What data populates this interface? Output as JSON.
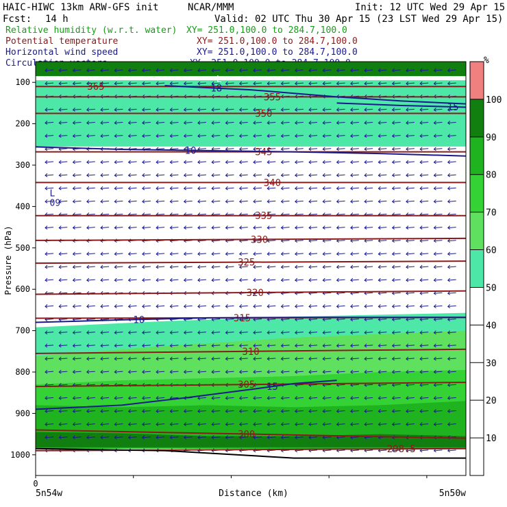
{
  "header": {
    "model": "HAIC-HIWC 13km ARW-GFS init",
    "center": "NCAR/MMM",
    "init": "Init: 12 UTC Wed 29 Apr 15",
    "fcst_label": "Fcst:",
    "fcst_value": "14 h",
    "valid": "Valid: 02 UTC Thu 30 Apr 15 (23 LST Wed 29 Apr 15)"
  },
  "fields": [
    {
      "name": "Relative humidity (w.r.t. water)",
      "xy": "XY= 251.0,100.0 to 284.7,100.0",
      "color": "#1a9a1a"
    },
    {
      "name": "Potential temperature",
      "xy": "XY= 251.0,100.0 to 284.7,100.0",
      "color": "#8b1a1a"
    },
    {
      "name": "Horizontal wind speed",
      "xy": "XY= 251.0,100.0 to 284.7,100.0",
      "color": "#1a1a8b"
    },
    {
      "name": "Circulation vectors",
      "xy": "XY= 251.0,100.0 to 284.7,100.0",
      "color": "#1a1a8b"
    }
  ],
  "chart_data": {
    "type": "heatmap",
    "ylabel": "Pressure (hPa)",
    "xlabel": "Distance (km)",
    "x_tick_label": "0",
    "x_left_label": "5n54w",
    "x_right_label": "5n50w",
    "y_ticks": [
      100,
      200,
      300,
      400,
      500,
      600,
      700,
      800,
      900,
      1000
    ],
    "y_range": [
      50,
      1050
    ],
    "colorbar": {
      "unit": "%",
      "ticks": [
        10,
        20,
        30,
        40,
        50,
        60,
        70,
        80,
        90,
        100
      ],
      "bands": [
        {
          "from": 0,
          "to": 50,
          "color": "#ffffff"
        },
        {
          "from": 50,
          "to": 60,
          "color": "#4de8a8"
        },
        {
          "from": 60,
          "to": 70,
          "color": "#5fe05f"
        },
        {
          "from": 70,
          "to": 80,
          "color": "#34d234"
        },
        {
          "from": 80,
          "to": 90,
          "color": "#1fb41f"
        },
        {
          "from": 90,
          "to": 100,
          "color": "#107f10"
        },
        {
          "from": 100,
          "to": 110,
          "color": "#f08080"
        }
      ]
    },
    "rh_regions": [
      {
        "rh": 55,
        "x": [
          0,
          100
        ],
        "top": [
          95,
          95
        ],
        "bottom": [
          255,
          255
        ]
      },
      {
        "rh": 55,
        "x": [
          0,
          30,
          60,
          100
        ],
        "top": [
          692,
          677,
          666,
          657
        ],
        "bottom": [
          985,
          985,
          985,
          985
        ]
      },
      {
        "rh": 65,
        "x": [
          0,
          30,
          60,
          100
        ],
        "top": [
          762,
          737,
          717,
          700
        ],
        "bottom": [
          985,
          985,
          985,
          985
        ]
      },
      {
        "rh": 75,
        "x": [
          0,
          20,
          40,
          60,
          80,
          100
        ],
        "top": [
          830,
          820,
          815,
          810,
          800,
          795
        ],
        "bottom": [
          985,
          985,
          985,
          985,
          985,
          985
        ]
      },
      {
        "rh": 85,
        "x": [
          0,
          20,
          40,
          60,
          80,
          100
        ],
        "top": [
          880,
          885,
          880,
          885,
          880,
          870
        ],
        "bottom": [
          985,
          985,
          985,
          985,
          985,
          985
        ]
      },
      {
        "rh": 95,
        "x": [
          0,
          20,
          40,
          60,
          80,
          100
        ],
        "top": [
          945,
          948,
          955,
          955,
          950,
          955
        ],
        "bottom": [
          982,
          982,
          982,
          982,
          982,
          982
        ]
      },
      {
        "rh": 95,
        "x": [
          0,
          100
        ],
        "top": [
          50,
          50
        ],
        "bottom": [
          85,
          85
        ]
      }
    ],
    "theta_contours": [
      {
        "label": "365",
        "label_x": 14,
        "p": [
          110,
          110
        ]
      },
      {
        "label": "355",
        "label_x": 55,
        "p": [
          135,
          135
        ]
      },
      {
        "label": "350",
        "label_x": 53,
        "p": [
          175,
          175
        ]
      },
      {
        "label": "345",
        "label_x": 53,
        "p": [
          268,
          268
        ]
      },
      {
        "label": "340",
        "label_x": 55,
        "p": [
          342,
          342
        ]
      },
      {
        "label": "335",
        "label_x": 53,
        "p": [
          422,
          422
        ]
      },
      {
        "label": "330",
        "label_x": 52,
        "p": [
          482,
          477
        ]
      },
      {
        "label": "325",
        "label_x": 49,
        "p": [
          537,
          532
        ]
      },
      {
        "label": "320",
        "label_x": 51,
        "p": [
          612,
          604
        ]
      },
      {
        "label": "315",
        "label_x": 48,
        "p": [
          670,
          668
        ]
      },
      {
        "label": "310",
        "label_x": 50,
        "p": [
          755,
          745
        ]
      },
      {
        "label": "305",
        "label_x": 49,
        "p": [
          835,
          825
        ]
      },
      {
        "label": "300",
        "label_x": 49,
        "p": [
          940,
          960
        ]
      },
      {
        "label": "298.5",
        "label_x": 85,
        "p": [
          990,
          985
        ]
      }
    ],
    "wind_contours": [
      {
        "label": "10",
        "label_x": 36,
        "x": [
          0,
          20,
          40,
          60,
          80,
          100
        ],
        "p": [
          256,
          262,
          265,
          268,
          272,
          278
        ]
      },
      {
        "label": "10",
        "label_x": 24,
        "x": [
          0,
          20,
          40,
          60,
          80,
          100
        ],
        "p": [
          680,
          674,
          669,
          668,
          668,
          668
        ]
      },
      {
        "label": "15",
        "label_x": 55,
        "x": [
          0,
          20,
          35,
          50,
          60,
          70
        ],
        "p": [
          890,
          880,
          862,
          842,
          828,
          820
        ]
      },
      {
        "label": "18",
        "label_x": 42,
        "x": [
          30,
          50,
          70,
          85,
          100
        ],
        "p": [
          108,
          118,
          135,
          145,
          152
        ]
      },
      {
        "label": "15",
        "label_x": 97,
        "x": [
          70,
          85,
          100
        ],
        "p": [
          150,
          156,
          160
        ]
      }
    ],
    "low_center": {
      "label": "L",
      "value": "09",
      "x": 2,
      "p": 375
    },
    "top_low": {
      "label": "L",
      "x": 42,
      "p": 100
    },
    "wind_vectors": {
      "columns": 30,
      "rows": 30,
      "direction": "westward"
    }
  }
}
